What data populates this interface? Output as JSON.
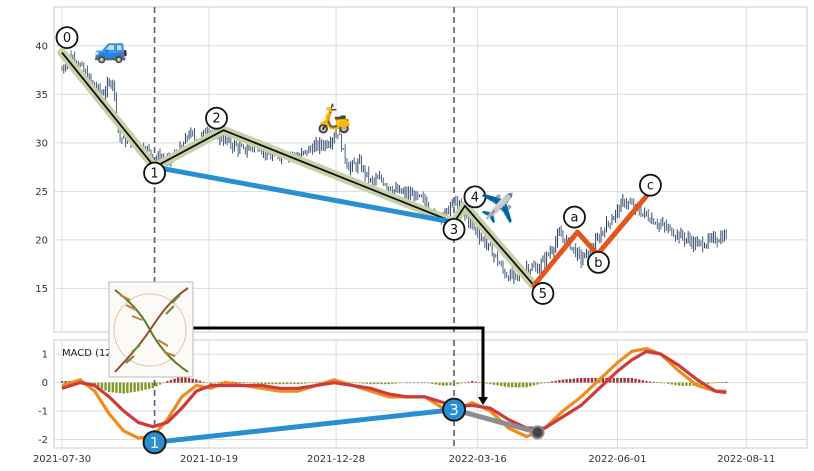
{
  "chart_data": [
    {
      "type": "candlestick",
      "panel": "price",
      "ylim": [
        10.5,
        44
      ],
      "yticks": [
        15,
        20,
        25,
        30,
        35,
        40
      ],
      "xlim_days": [
        0,
        385
      ],
      "x_ticks": [
        {
          "label": "2021-07-30",
          "day": 0
        },
        {
          "label": "2021-10-19",
          "day": 81
        },
        {
          "label": "2021-12-28",
          "day": 151
        },
        {
          "label": "2022-03-16",
          "day": 229
        },
        {
          "label": "2022-06-01",
          "day": 306
        },
        {
          "label": "2022-08-11",
          "day": 377
        }
      ],
      "price_path": [
        [
          0,
          37.5
        ],
        [
          3,
          39.0
        ],
        [
          8,
          38.5
        ],
        [
          15,
          36.5
        ],
        [
          22,
          35.0
        ],
        [
          28,
          36.5
        ],
        [
          30,
          33.0
        ],
        [
          32,
          30.5
        ],
        [
          38,
          30.2
        ],
        [
          45,
          29.5
        ],
        [
          52,
          28.5
        ],
        [
          58,
          28.0
        ],
        [
          62,
          28.5
        ],
        [
          66,
          29.5
        ],
        [
          70,
          31.0
        ],
        [
          75,
          30.0
        ],
        [
          80,
          31.5
        ],
        [
          86,
          30.8
        ],
        [
          92,
          30.0
        ],
        [
          100,
          29.2
        ],
        [
          108,
          29.8
        ],
        [
          115,
          28.5
        ],
        [
          122,
          29.0
        ],
        [
          130,
          28.5
        ],
        [
          138,
          29.5
        ],
        [
          146,
          30.0
        ],
        [
          152,
          31.2
        ],
        [
          155,
          29.0
        ],
        [
          158,
          27.5
        ],
        [
          164,
          27.8
        ],
        [
          170,
          26.0
        ],
        [
          176,
          26.2
        ],
        [
          184,
          25.0
        ],
        [
          192,
          24.6
        ],
        [
          200,
          24.0
        ],
        [
          205,
          22.5
        ],
        [
          212,
          22.8
        ],
        [
          216,
          24.0
        ],
        [
          220,
          23.0
        ],
        [
          226,
          21.5
        ],
        [
          232,
          20.0
        ],
        [
          238,
          18.5
        ],
        [
          244,
          16.5
        ],
        [
          250,
          16.0
        ],
        [
          256,
          17.2
        ],
        [
          262,
          17.0
        ],
        [
          268,
          18.5
        ],
        [
          274,
          20.5
        ],
        [
          280,
          19.5
        ],
        [
          286,
          18.0
        ],
        [
          292,
          19.0
        ],
        [
          298,
          21.0
        ],
        [
          304,
          22.5
        ],
        [
          310,
          24.0
        ],
        [
          316,
          23.2
        ],
        [
          322,
          22.5
        ],
        [
          330,
          21.5
        ],
        [
          340,
          20.5
        ],
        [
          350,
          19.5
        ],
        [
          356,
          19.8
        ],
        [
          362,
          20.2
        ],
        [
          366,
          20.5
        ]
      ],
      "wave_points": [
        {
          "label": "0",
          "day": 0,
          "price": 39.3
        },
        {
          "label": "1",
          "day": 51,
          "price": 27.5
        },
        {
          "label": "2",
          "day": 89,
          "price": 31.3
        },
        {
          "label": "3",
          "day": 216,
          "price": 21.8
        },
        {
          "label": "4",
          "day": 222,
          "price": 23.5
        },
        {
          "label": "5",
          "day": 260,
          "price": 15.3
        },
        {
          "label": "a",
          "day": 284,
          "price": 20.8
        },
        {
          "label": "b",
          "day": 295,
          "price": 18.5
        },
        {
          "label": "c",
          "day": 322,
          "price": 24.5
        }
      ],
      "wave_lines": [
        {
          "kind": "impulse",
          "color": "#111111",
          "points": [
            "0",
            "1",
            "2",
            "3",
            "4",
            "5"
          ]
        },
        {
          "kind": "correction",
          "color": "#e4561b",
          "points": [
            "5",
            "a",
            "b",
            "c"
          ]
        },
        {
          "kind": "divergence",
          "color": "#2a8fd0",
          "points": [
            "1",
            "3"
          ]
        }
      ],
      "vertical_lines_days": [
        51,
        216
      ],
      "icons": [
        {
          "name": "car-icon",
          "glyph": "🚙",
          "day": 27,
          "price": 38.8
        },
        {
          "name": "scooter-icon",
          "glyph": "🛵",
          "day": 150,
          "price": 31.6
        },
        {
          "name": "airplane-icon",
          "glyph": "✈️",
          "day": 240,
          "price": 22.3
        }
      ]
    },
    {
      "type": "macd",
      "panel": "indicator",
      "title": "MACD (12,26,9)",
      "ylim": [
        -2.3,
        1.5
      ],
      "yticks": [
        -2,
        -1,
        0,
        1
      ],
      "macd_line": [
        [
          0,
          -0.1
        ],
        [
          10,
          0.1
        ],
        [
          18,
          -0.3
        ],
        [
          26,
          -1.1
        ],
        [
          34,
          -1.7
        ],
        [
          42,
          -1.95
        ],
        [
          50,
          -1.9
        ],
        [
          58,
          -1.3
        ],
        [
          66,
          -0.5
        ],
        [
          74,
          -0.1
        ],
        [
          82,
          -0.2
        ],
        [
          90,
          0.0
        ],
        [
          100,
          -0.1
        ],
        [
          110,
          -0.2
        ],
        [
          120,
          -0.3
        ],
        [
          130,
          -0.3
        ],
        [
          140,
          -0.1
        ],
        [
          150,
          0.1
        ],
        [
          160,
          -0.1
        ],
        [
          170,
          -0.3
        ],
        [
          180,
          -0.5
        ],
        [
          190,
          -0.5
        ],
        [
          200,
          -0.5
        ],
        [
          210,
          -0.9
        ],
        [
          216,
          -1.0
        ],
        [
          226,
          -0.7
        ],
        [
          236,
          -1.0
        ],
        [
          246,
          -1.6
        ],
        [
          256,
          -1.9
        ],
        [
          266,
          -1.6
        ],
        [
          276,
          -1.0
        ],
        [
          286,
          -0.5
        ],
        [
          296,
          0.1
        ],
        [
          306,
          0.7
        ],
        [
          314,
          1.1
        ],
        [
          322,
          1.2
        ],
        [
          330,
          1.0
        ],
        [
          340,
          0.4
        ],
        [
          350,
          -0.1
        ],
        [
          360,
          -0.3
        ],
        [
          366,
          -0.3
        ]
      ],
      "signal_line": [
        [
          0,
          -0.2
        ],
        [
          10,
          0.0
        ],
        [
          18,
          -0.1
        ],
        [
          26,
          -0.5
        ],
        [
          34,
          -1.0
        ],
        [
          42,
          -1.4
        ],
        [
          50,
          -1.55
        ],
        [
          58,
          -1.4
        ],
        [
          66,
          -0.9
        ],
        [
          74,
          -0.3
        ],
        [
          82,
          -0.1
        ],
        [
          90,
          -0.1
        ],
        [
          100,
          -0.1
        ],
        [
          110,
          -0.1
        ],
        [
          120,
          -0.2
        ],
        [
          130,
          -0.2
        ],
        [
          140,
          -0.1
        ],
        [
          150,
          0.0
        ],
        [
          160,
          -0.1
        ],
        [
          170,
          -0.2
        ],
        [
          180,
          -0.4
        ],
        [
          190,
          -0.5
        ],
        [
          200,
          -0.5
        ],
        [
          210,
          -0.7
        ],
        [
          216,
          -0.85
        ],
        [
          226,
          -0.8
        ],
        [
          236,
          -0.9
        ],
        [
          246,
          -1.3
        ],
        [
          256,
          -1.6
        ],
        [
          266,
          -1.6
        ],
        [
          276,
          -1.2
        ],
        [
          286,
          -0.8
        ],
        [
          296,
          -0.2
        ],
        [
          306,
          0.4
        ],
        [
          314,
          0.8
        ],
        [
          322,
          1.1
        ],
        [
          330,
          1.0
        ],
        [
          340,
          0.6
        ],
        [
          350,
          0.1
        ],
        [
          360,
          -0.3
        ],
        [
          366,
          -0.35
        ]
      ],
      "divergence": [
        {
          "label": "1",
          "day": 51,
          "value": -2.1,
          "color": "#2a8fd0"
        },
        {
          "label": "3",
          "day": 216,
          "value": -0.95,
          "color": "#2a8fd0"
        }
      ],
      "extra_segment": {
        "from_day": 216,
        "from_value": -0.95,
        "to_day": 262,
        "to_value": -1.75,
        "color": "#8c8c8c"
      }
    }
  ],
  "colors": {
    "candle_up": "#2e4266",
    "candle_down": "#4a5f80",
    "impulse_band": "#c9d1a8",
    "macd": "#f08c1e",
    "signal": "#cf3a3a",
    "hist_pos": "#a83232",
    "hist_neg": "#7f9a24",
    "vline": "#4d6480"
  }
}
